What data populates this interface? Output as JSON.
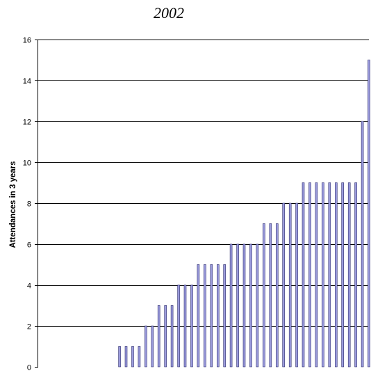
{
  "chart_data": {
    "type": "bar",
    "title": "2002",
    "xlabel": "",
    "ylabel": "Attendances in 3 years",
    "ylim": [
      0,
      16
    ],
    "yticks": [
      0,
      2,
      4,
      6,
      8,
      10,
      12,
      14,
      16
    ],
    "grid": true,
    "colors": {
      "bar_fill": "#9b9bdc",
      "bar_stroke": "#2e2e6e",
      "grid": "#000000"
    },
    "values": [
      0,
      0,
      0,
      0,
      0,
      0,
      0,
      0,
      0,
      0,
      0,
      0,
      1,
      1,
      1,
      1,
      2,
      2,
      3,
      3,
      3,
      4,
      4,
      4,
      5,
      5,
      5,
      5,
      5,
      6,
      6,
      6,
      6,
      6,
      7,
      7,
      7,
      8,
      8,
      8,
      9,
      9,
      9,
      9,
      9,
      9,
      9,
      9,
      9,
      12,
      15
    ]
  }
}
